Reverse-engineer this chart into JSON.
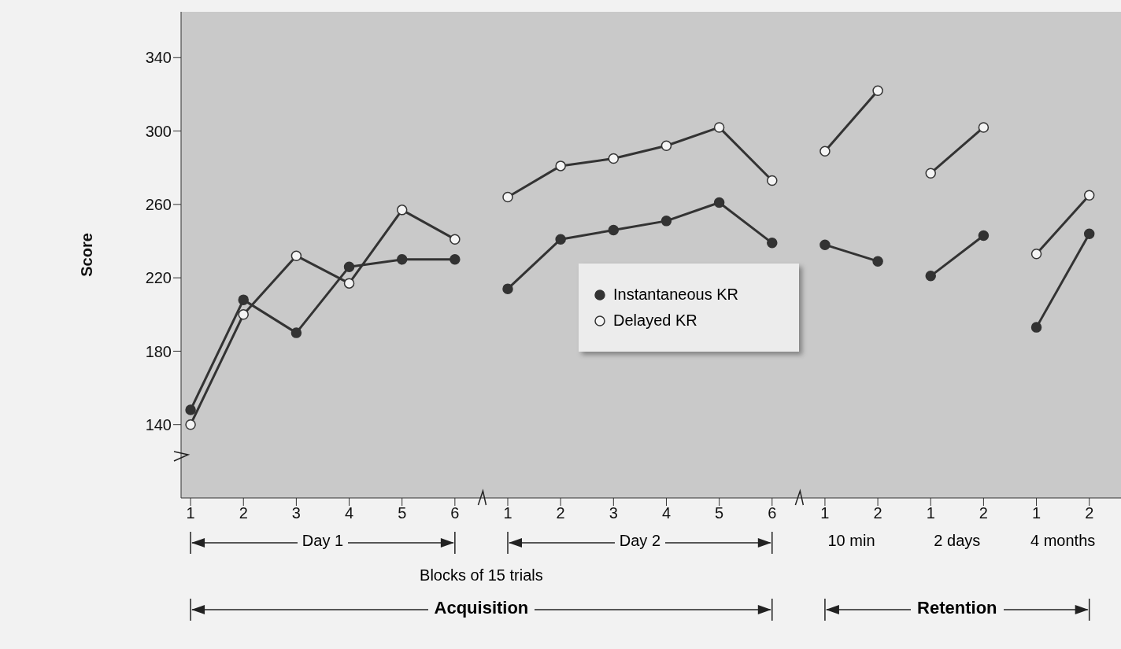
{
  "chart_data": {
    "type": "line",
    "categories": [
      "1",
      "2",
      "3",
      "4",
      "5",
      "6",
      "1",
      "2",
      "3",
      "4",
      "5",
      "6",
      "1",
      "2",
      "1",
      "2",
      "1",
      "2"
    ],
    "series": [
      {
        "name": "Instantaneous KR",
        "color": "#333333",
        "values": [
          148,
          208,
          190,
          226,
          230,
          230,
          null,
          null,
          null,
          null,
          null,
          null,
          null,
          null,
          null,
          null,
          null,
          null
        ]
      },
      {
        "name": "Delayed KR",
        "color": "#f4f4f4",
        "values": [
          140,
          200,
          232,
          217,
          257,
          241,
          null,
          null,
          null,
          null,
          null,
          null,
          null,
          null,
          null,
          null,
          null,
          null
        ]
      },
      {
        "color": "#333333",
        "values": [
          null,
          null,
          null,
          null,
          null,
          null,
          214,
          241,
          246,
          251,
          261,
          239,
          null,
          null,
          null,
          null,
          null,
          null
        ]
      },
      {
        "color": "#f4f4f4",
        "values": [
          null,
          null,
          null,
          null,
          null,
          null,
          264,
          281,
          285,
          292,
          302,
          273,
          null,
          null,
          null,
          null,
          null,
          null
        ]
      },
      {
        "color": "#333333",
        "values": [
          null,
          null,
          null,
          null,
          null,
          null,
          null,
          null,
          null,
          null,
          null,
          null,
          238,
          229,
          null,
          null,
          null,
          null
        ]
      },
      {
        "color": "#f4f4f4",
        "values": [
          null,
          null,
          null,
          null,
          null,
          null,
          null,
          null,
          null,
          null,
          null,
          null,
          289,
          322,
          null,
          null,
          null,
          null
        ]
      },
      {
        "color": "#333333",
        "values": [
          null,
          null,
          null,
          null,
          null,
          null,
          null,
          null,
          null,
          null,
          null,
          null,
          null,
          null,
          221,
          243,
          null,
          null
        ]
      },
      {
        "color": "#f4f4f4",
        "values": [
          null,
          null,
          null,
          null,
          null,
          null,
          null,
          null,
          null,
          null,
          null,
          null,
          null,
          null,
          277,
          302,
          null,
          null
        ]
      },
      {
        "color": "#333333",
        "values": [
          null,
          null,
          null,
          null,
          null,
          null,
          null,
          null,
          null,
          null,
          null,
          null,
          null,
          null,
          null,
          null,
          193,
          244
        ]
      },
      {
        "color": "#f4f4f4",
        "values": [
          null,
          null,
          null,
          null,
          null,
          null,
          null,
          null,
          null,
          null,
          null,
          null,
          null,
          null,
          null,
          null,
          233,
          265
        ]
      }
    ],
    "xlabel": "Blocks of 15 trials",
    "ylabel": "Score",
    "ylim": [
      100,
      365
    ],
    "yticks": [
      140,
      180,
      220,
      260,
      300,
      340
    ],
    "annotations": [
      "Day 1",
      "Day 2",
      "10 min",
      "2 days",
      "4 months",
      "Acquisition",
      "Retention"
    ],
    "legend": "center",
    "marker": "circle",
    "line_style": "solid",
    "grid": false
  }
}
